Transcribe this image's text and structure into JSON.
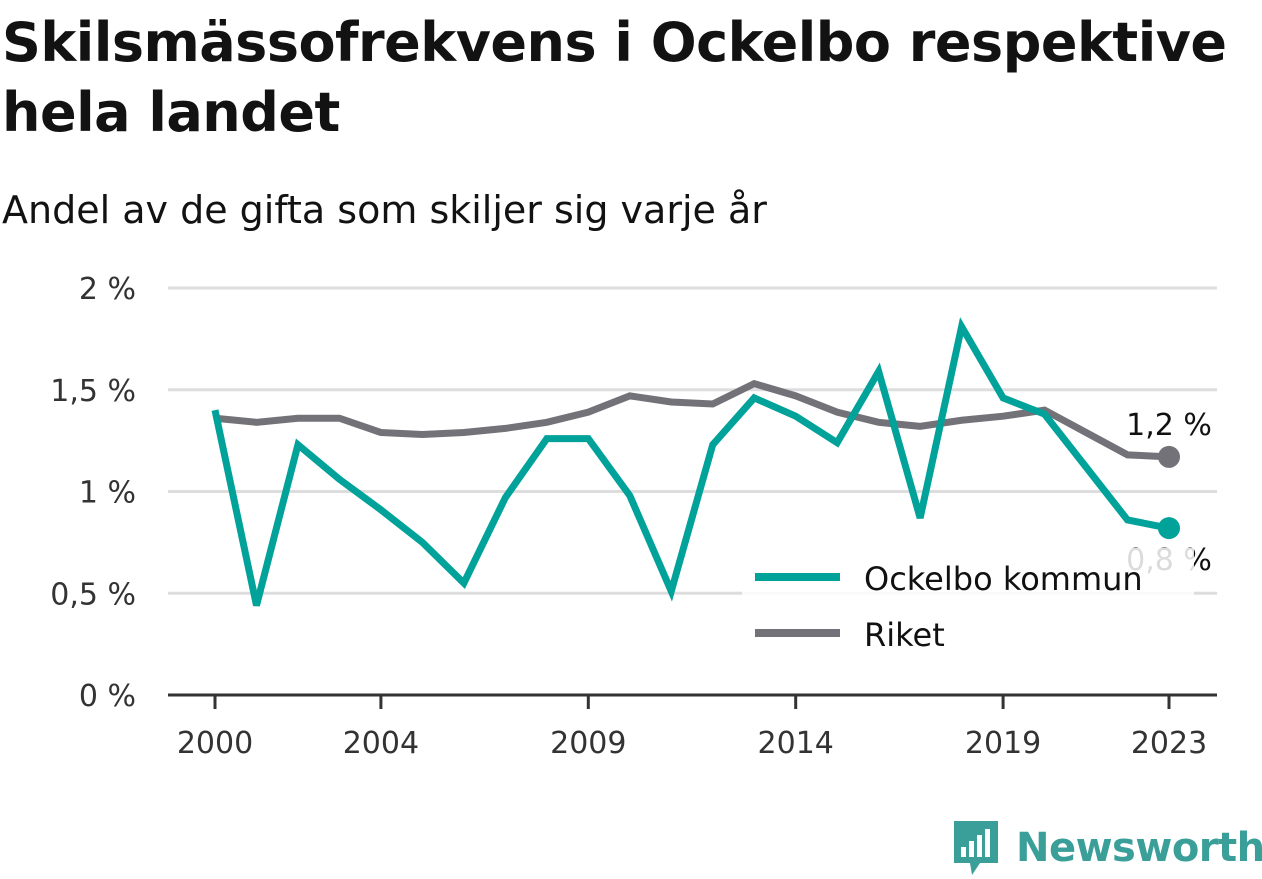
{
  "title": "Skilsmässofrekvens i Ockelbo respektive hela landet",
  "subtitle": "Andel av de gifta som skiljer sig varje år",
  "brand": "Newsworthy",
  "colors": {
    "ockelbo": "#00a29a",
    "riket": "#737278",
    "grid": "#dddddd",
    "axis": "#333333",
    "brand": "#3a9e99"
  },
  "chart_data": {
    "type": "line",
    "title": "Skilsmässofrekvens i Ockelbo respektive hela landet",
    "subtitle": "Andel av de gifta som skiljer sig varje år",
    "x": [
      2000,
      2001,
      2002,
      2003,
      2004,
      2005,
      2006,
      2007,
      2008,
      2009,
      2010,
      2011,
      2012,
      2013,
      2014,
      2015,
      2016,
      2017,
      2018,
      2019,
      2020,
      2021,
      2022,
      2023
    ],
    "x_tick_labels": [
      "2000",
      "2004",
      "2009",
      "2014",
      "2019",
      "2023"
    ],
    "x_tick_values": [
      2000,
      2004,
      2009,
      2014,
      2019,
      2023
    ],
    "ylim": [
      0,
      2
    ],
    "y_ticks": [
      0,
      0.5,
      1,
      1.5,
      2
    ],
    "y_tick_labels": [
      "0 %",
      "0,5 %",
      "1 %",
      "1,5 %",
      "2 %"
    ],
    "grid": true,
    "legend_position": "bottom-right",
    "series": [
      {
        "name": "Ockelbo kommun",
        "values": [
          1.4,
          0.44,
          1.23,
          1.06,
          0.91,
          0.75,
          0.55,
          0.97,
          1.26,
          1.26,
          0.98,
          0.51,
          1.23,
          1.46,
          1.37,
          1.24,
          1.59,
          0.87,
          1.81,
          1.46,
          1.38,
          1.12,
          0.86,
          0.82
        ],
        "end_label": "0,8 %"
      },
      {
        "name": "Riket",
        "values": [
          1.36,
          1.34,
          1.36,
          1.36,
          1.29,
          1.28,
          1.29,
          1.31,
          1.34,
          1.39,
          1.47,
          1.44,
          1.43,
          1.53,
          1.47,
          1.39,
          1.34,
          1.32,
          1.35,
          1.37,
          1.4,
          1.29,
          1.18,
          1.17
        ],
        "end_label": "1,2 %"
      }
    ]
  }
}
